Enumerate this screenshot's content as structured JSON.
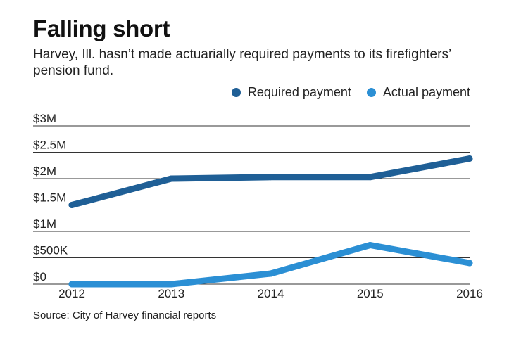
{
  "header": {
    "title": "Falling short",
    "subtitle": "Harvey, Ill. hasn’t made actuarially required payments to its firefighters’ pension fund."
  },
  "legend": {
    "items": [
      {
        "label": "Required payment",
        "color": "#1f5f96"
      },
      {
        "label": "Actual payment",
        "color": "#2b8fd4"
      }
    ]
  },
  "footer": {
    "source": "Source: City of Harvey financial reports"
  },
  "chart_data": {
    "type": "line",
    "title": "Falling short",
    "subtitle": "Harvey, Ill. hasn’t made actuarially required payments to its firefighters’ pension fund.",
    "x": [
      "2012",
      "2013",
      "2014",
      "2015",
      "2016"
    ],
    "series": [
      {
        "name": "Required payment",
        "color": "#1f5f96",
        "values": [
          1500000,
          2000000,
          2030000,
          2030000,
          2380000
        ]
      },
      {
        "name": "Actual payment",
        "color": "#2b8fd4",
        "values": [
          0,
          0,
          200000,
          740000,
          400000
        ]
      }
    ],
    "yticks": [
      {
        "value": 0,
        "label": "$0"
      },
      {
        "value": 500000,
        "label": "$500K"
      },
      {
        "value": 1000000,
        "label": "$1M"
      },
      {
        "value": 1500000,
        "label": "$1.5M"
      },
      {
        "value": 2000000,
        "label": "$2M"
      },
      {
        "value": 2500000,
        "label": "$2.5M"
      },
      {
        "value": 3000000,
        "label": "$3M"
      }
    ],
    "ylim": [
      0,
      3000000
    ],
    "grid": true,
    "legend_position": "top-right"
  }
}
